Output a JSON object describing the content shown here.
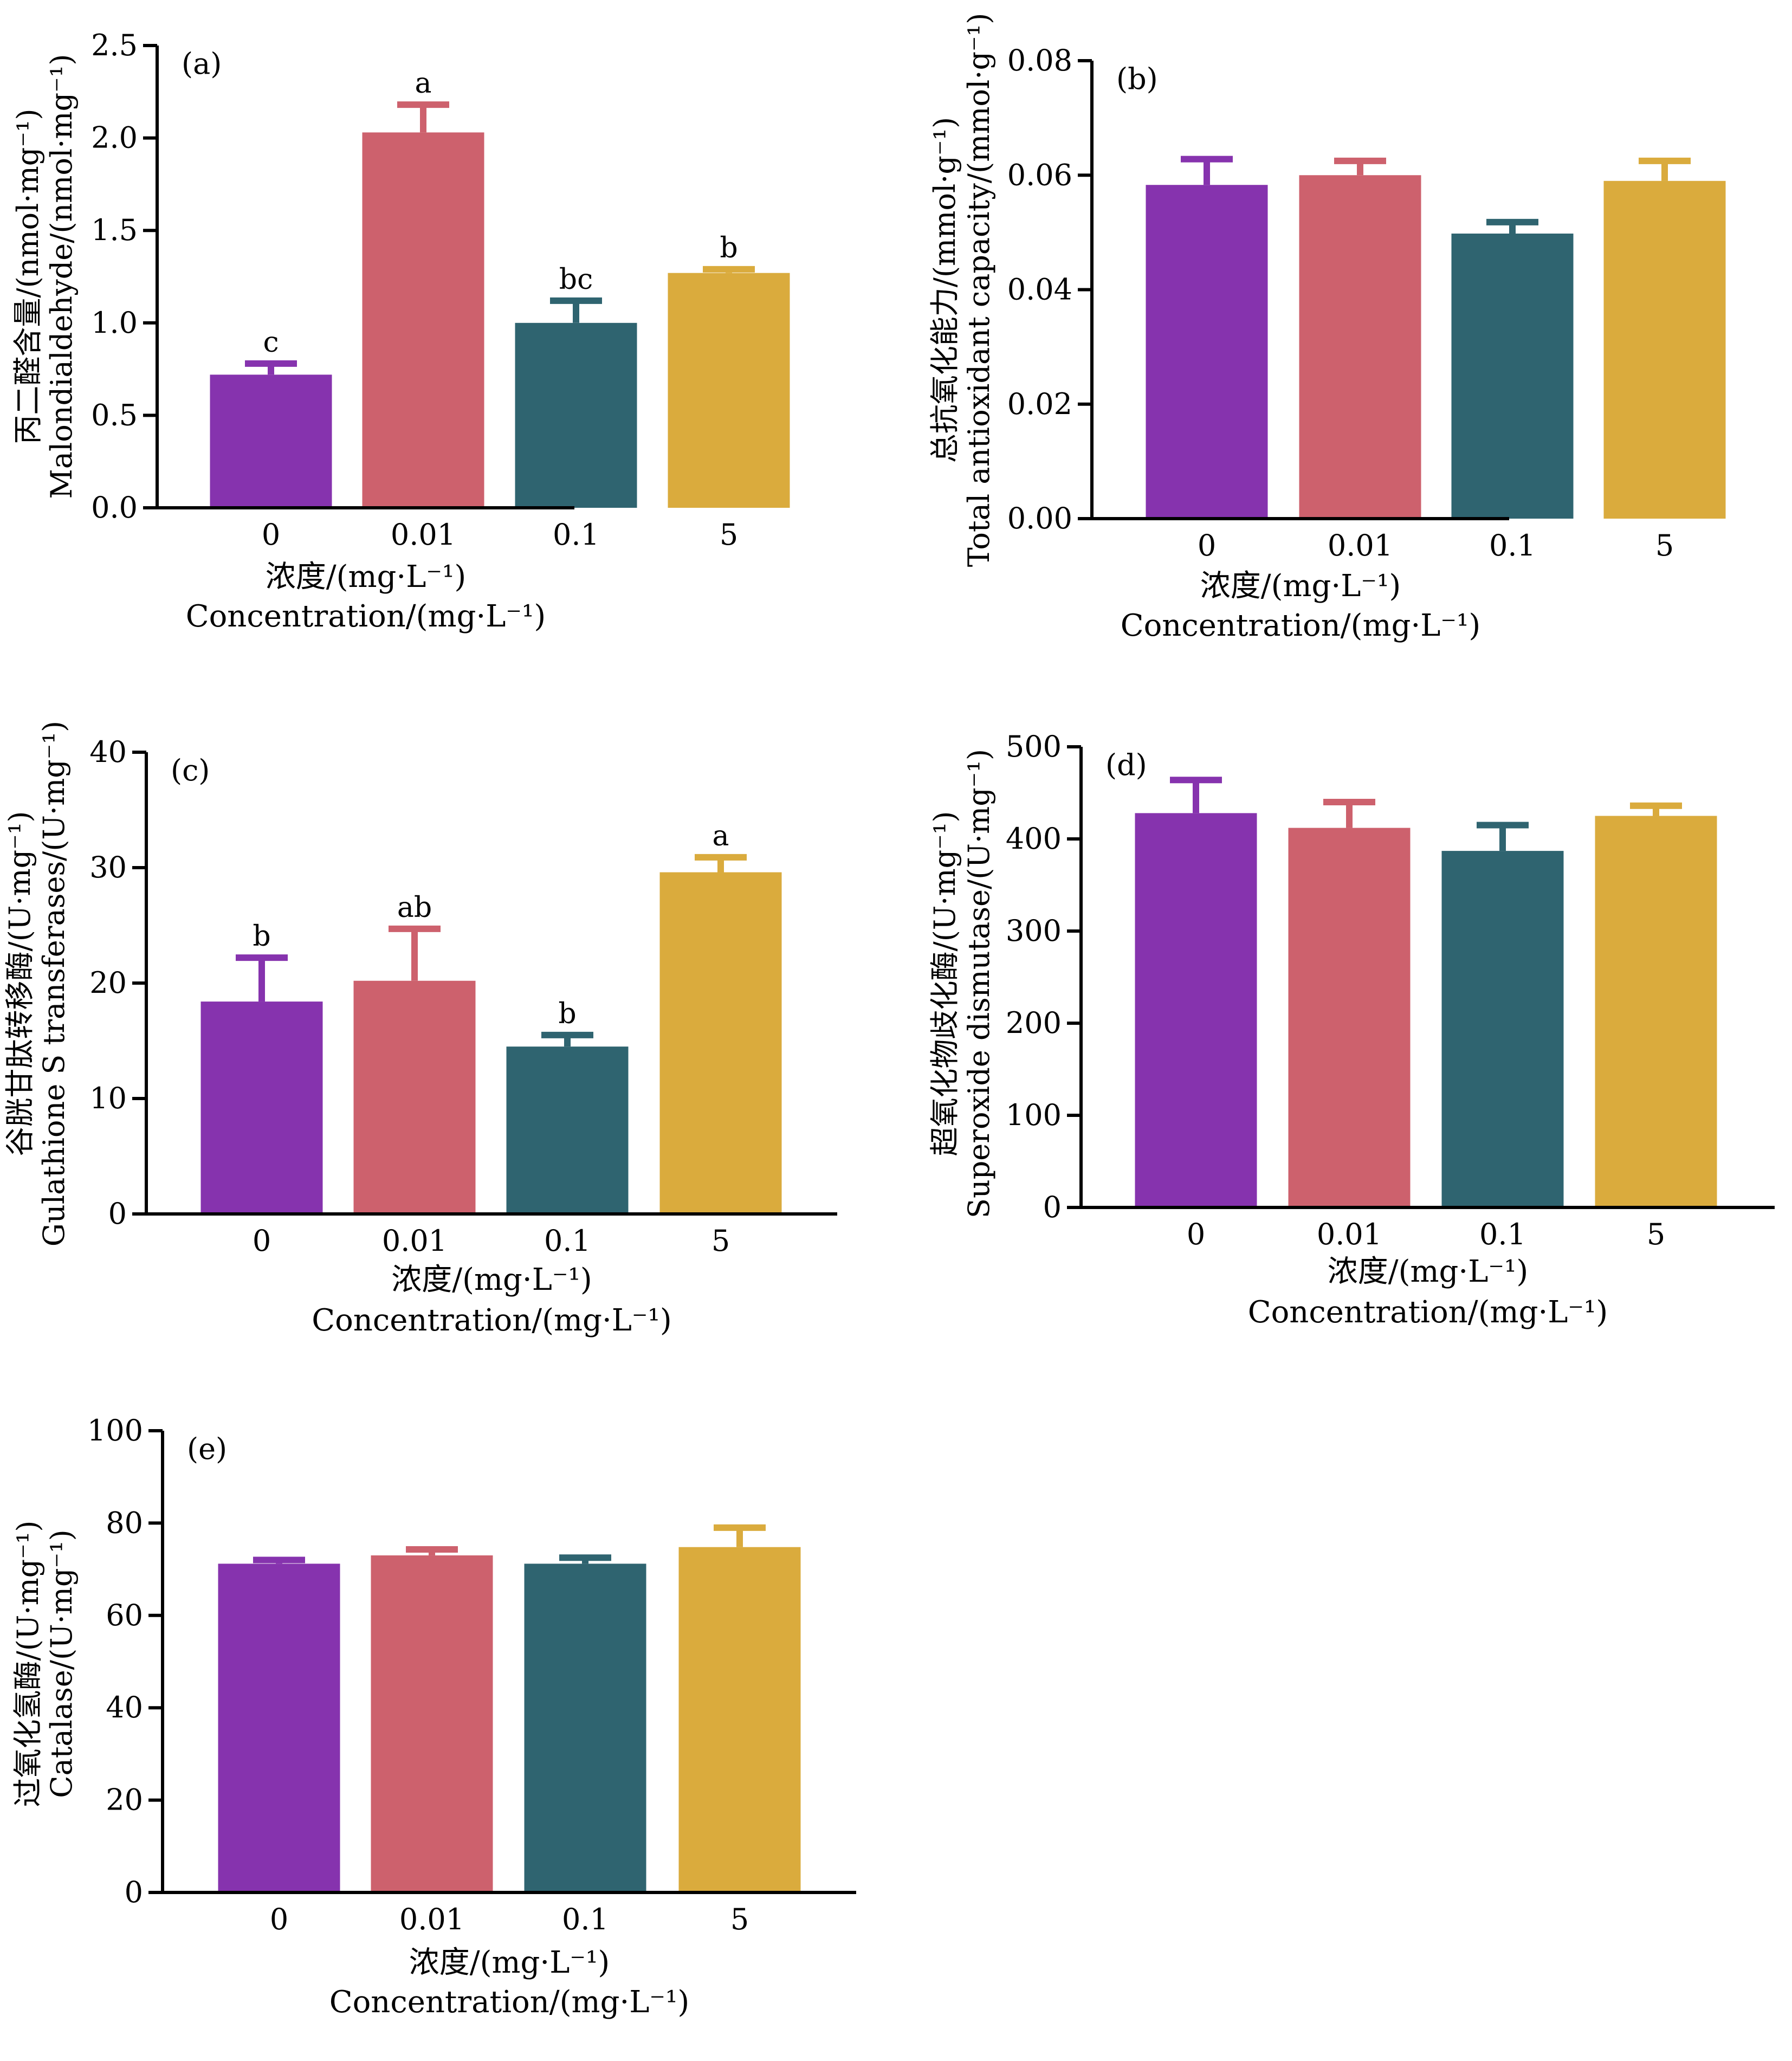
{
  "colors": [
    "#8633AE",
    "#CD616D",
    "#2F6470",
    "#DAAB3D"
  ],
  "chart_data": [
    {
      "type": "bar",
      "panel_label": "(a)",
      "categories": [
        "0",
        "0.01",
        "0.1",
        "5"
      ],
      "values": [
        0.72,
        2.03,
        1.0,
        1.27
      ],
      "errors": [
        0.06,
        0.15,
        0.12,
        0.02
      ],
      "sig_letters": [
        "c",
        "a",
        "bc",
        "b"
      ],
      "ylim": [
        0,
        2.5
      ],
      "yticks": [
        "0.0",
        "0.5",
        "1.0",
        "1.5",
        "2.0",
        "2.5"
      ],
      "ylabel_cn": "丙二醛含量/(nmol·mg⁻¹)",
      "ylabel_en": "Malondialdehyde/(nmol·mg⁻¹)",
      "xlabel_cn": "浓度/(mg·L⁻¹)",
      "xlabel_en": "Concentration/(mg·L⁻¹)"
    },
    {
      "type": "bar",
      "panel_label": "(b)",
      "categories": [
        "0",
        "0.01",
        "0.1",
        "5"
      ],
      "values": [
        0.0583,
        0.06,
        0.0498,
        0.059
      ],
      "errors": [
        0.0045,
        0.0025,
        0.002,
        0.0035
      ],
      "sig_letters": [
        "",
        "",
        "",
        ""
      ],
      "ylim": [
        0,
        0.08
      ],
      "yticks": [
        "0.00",
        "0.02",
        "0.04",
        "0.06",
        "0.08"
      ],
      "ylabel_cn": "总抗氧化能力/(mmol·g⁻¹)",
      "ylabel_en": "Total antioxidant capacity/(mmol·g⁻¹)",
      "xlabel_cn": "浓度/(mg·L⁻¹)",
      "xlabel_en": "Concentration/(mg·L⁻¹)"
    },
    {
      "type": "bar",
      "panel_label": "(c)",
      "categories": [
        "0",
        "0.01",
        "0.1",
        "5"
      ],
      "values": [
        18.4,
        20.2,
        14.5,
        29.6
      ],
      "errors": [
        3.8,
        4.5,
        1.0,
        1.3
      ],
      "sig_letters": [
        "b",
        "ab",
        "b",
        "a"
      ],
      "ylim": [
        0,
        40
      ],
      "yticks": [
        "0",
        "10",
        "20",
        "30",
        "40"
      ],
      "ylabel_cn": "谷胱甘肽转移酶/(U·mg⁻¹)",
      "ylabel_en": "Gulathione S transferases/(U·mg⁻¹)",
      "xlabel_cn": "浓度/(mg·L⁻¹)",
      "xlabel_en": "Concentration/(mg·L⁻¹)"
    },
    {
      "type": "bar",
      "panel_label": "(d)",
      "categories": [
        "0",
        "0.01",
        "0.1",
        "5"
      ],
      "values": [
        428,
        412,
        387,
        425
      ],
      "errors": [
        36,
        28,
        28,
        11
      ],
      "sig_letters": [
        "",
        "",
        "",
        ""
      ],
      "ylim": [
        0,
        500
      ],
      "yticks": [
        "0",
        "100",
        "200",
        "300",
        "400",
        "500"
      ],
      "ylabel_cn": "超氧化物歧化酶/(U·mg⁻¹)",
      "ylabel_en": "Superoxide dismutase/(U·mg⁻¹)",
      "xlabel_cn": "浓度/(mg·L⁻¹)",
      "xlabel_en": "Concentration/(mg·L⁻¹)"
    },
    {
      "type": "bar",
      "panel_label": "(e)",
      "categories": [
        "0",
        "0.01",
        "0.1",
        "5"
      ],
      "values": [
        71.2,
        73.0,
        71.2,
        74.8
      ],
      "errors": [
        0.8,
        1.3,
        1.3,
        4.2
      ],
      "sig_letters": [
        "",
        "",
        "",
        ""
      ],
      "ylim": [
        0,
        100
      ],
      "yticks": [
        "0",
        "20",
        "40",
        "60",
        "80",
        "100"
      ],
      "ylabel_cn": "过氧化氢酶/(U·mg⁻¹)",
      "ylabel_en": "Catalase/(U·mg⁻¹)",
      "xlabel_cn": "浓度/(mg·L⁻¹)",
      "xlabel_en": "Concentration/(mg·L⁻¹)"
    }
  ]
}
